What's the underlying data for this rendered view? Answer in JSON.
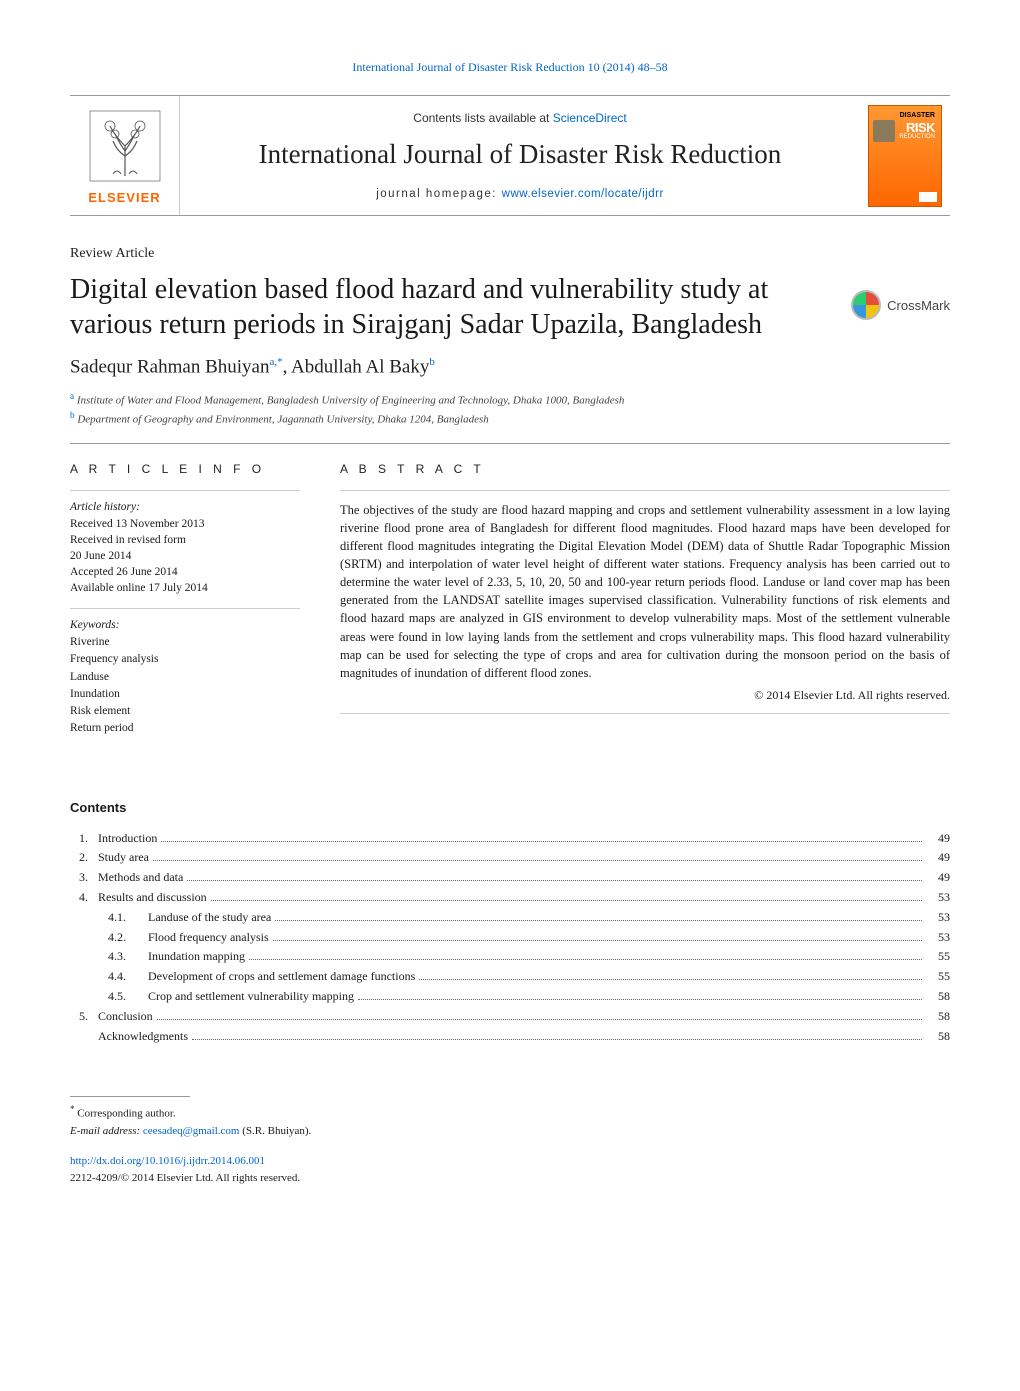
{
  "header_citation": "International Journal of Disaster Risk Reduction 10 (2014) 48–58",
  "masthead": {
    "publisher": "ELSEVIER",
    "contents_prefix": "Contents lists available at ",
    "contents_link": "ScienceDirect",
    "journal_name": "International Journal of Disaster Risk Reduction",
    "homepage_prefix": "journal homepage: ",
    "homepage_url": "www.elsevier.com/locate/ijdrr",
    "cover": {
      "line1": "DISASTER",
      "line2": "RISK",
      "line3": "REDUCTION"
    }
  },
  "article_type": "Review Article",
  "title": "Digital elevation based flood hazard and vulnerability study at various return periods in Sirajganj Sadar Upazila, Bangladesh",
  "crossmark_label": "CrossMark",
  "authors_html": "Sadequr Rahman Bhuiyan",
  "author1_sup": "a,*",
  "authors_sep": ", Abdullah Al Baky",
  "author2_sup": "b",
  "affiliations": {
    "a": "Institute of Water and Flood Management, Bangladesh University of Engineering and Technology, Dhaka 1000, Bangladesh",
    "b": "Department of Geography and Environment, Jagannath University, Dhaka 1204, Bangladesh"
  },
  "info": {
    "heading": "A R T I C L E   I N F O",
    "history_label": "Article history:",
    "history": [
      "Received 13 November 2013",
      "Received in revised form",
      "20 June 2014",
      "Accepted 26 June 2014",
      "Available online 17 July 2014"
    ],
    "keywords_label": "Keywords:",
    "keywords": [
      "Riverine",
      "Frequency analysis",
      "Landuse",
      "Inundation",
      "Risk element",
      "Return period"
    ]
  },
  "abstract": {
    "heading": "A B S T R A C T",
    "text": "The objectives of the study are flood hazard mapping and crops and settlement vulnerability assessment in a low laying riverine flood prone area of Bangladesh for different flood magnitudes. Flood hazard maps have been developed for different flood magnitudes integrating the Digital Elevation Model (DEM) data of Shuttle Radar Topographic Mission (SRTM) and interpolation of water level height of different water stations. Frequency analysis has been carried out to determine the water level of 2.33, 5, 10, 20, 50 and 100-year return periods flood. Landuse or land cover map has been generated from the LANDSAT satellite images supervised classification. Vulnerability functions of risk elements and flood hazard maps are analyzed in GIS environment to develop vulnerability maps. Most of the settlement vulnerable areas were found in low laying lands from the settlement and crops vulnerability maps. This flood hazard vulnerability map can be used for selecting the type of crops and area for cultivation during the monsoon period on the basis of magnitudes of inundation of different flood zones.",
    "copyright": "© 2014 Elsevier Ltd. All rights reserved."
  },
  "contents": {
    "heading": "Contents",
    "items": [
      {
        "num": "1.",
        "label": "Introduction",
        "page": "49"
      },
      {
        "num": "2.",
        "label": "Study area",
        "page": "49"
      },
      {
        "num": "3.",
        "label": "Methods and data",
        "page": "49"
      },
      {
        "num": "4.",
        "label": "Results and discussion",
        "page": "53"
      },
      {
        "num": "",
        "sub": "4.1.",
        "label": "Landuse of the study area",
        "page": "53"
      },
      {
        "num": "",
        "sub": "4.2.",
        "label": "Flood frequency analysis",
        "page": "53"
      },
      {
        "num": "",
        "sub": "4.3.",
        "label": "Inundation mapping",
        "page": "55"
      },
      {
        "num": "",
        "sub": "4.4.",
        "label": "Development of crops and settlement damage functions",
        "page": "55"
      },
      {
        "num": "",
        "sub": "4.5.",
        "label": "Crop and settlement vulnerability mapping",
        "page": "58"
      },
      {
        "num": "5.",
        "label": "Conclusion",
        "page": "58"
      },
      {
        "num": "",
        "label": "Acknowledgments",
        "page": "58"
      }
    ]
  },
  "footnote": {
    "corr_label": "Corresponding author.",
    "email_label": "E-mail address: ",
    "email": "ceesadeq@gmail.com",
    "email_suffix": " (S.R. Bhuiyan).",
    "doi_url": "http://dx.doi.org/10.1016/j.ijdrr.2014.06.001",
    "issn_line": "2212-4209/© 2014 Elsevier Ltd. All rights reserved."
  },
  "colors": {
    "link": "#0066cc",
    "publisher_orange": "#ff6600",
    "text": "#1a1a1a"
  }
}
